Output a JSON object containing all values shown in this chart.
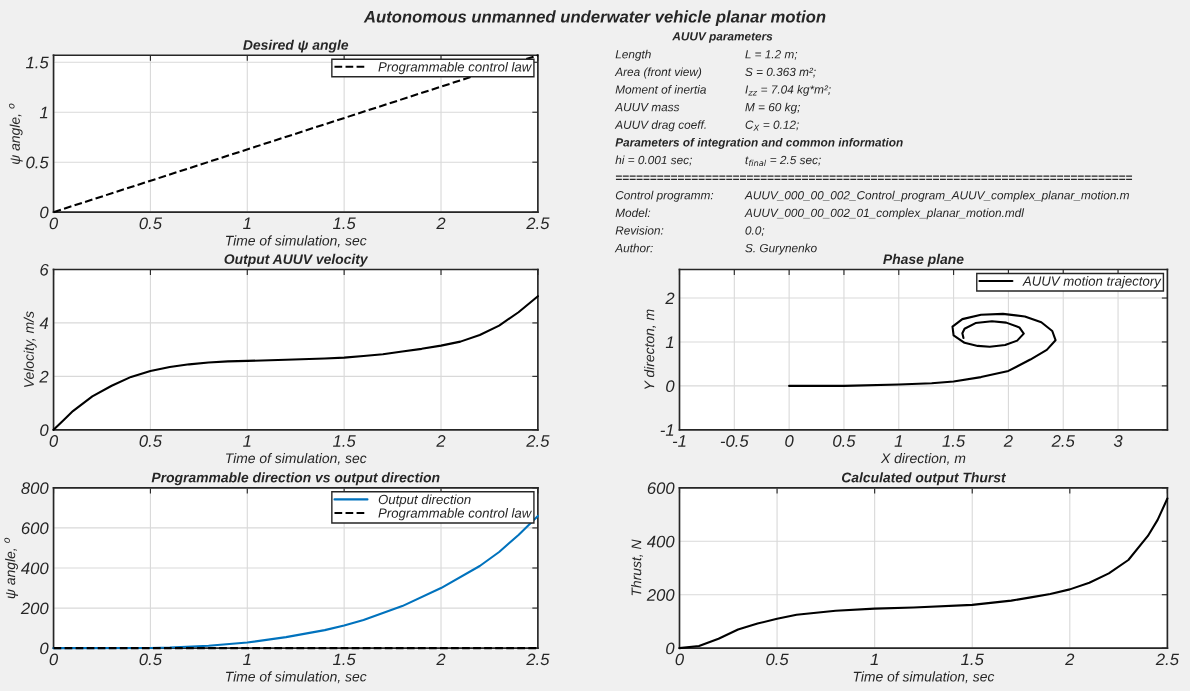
{
  "chart_data": [
    {
      "type": "line",
      "title": "Desired ψ angle",
      "xlabel": "Time of simulation, sec",
      "ylabel": "ψ angle, $^{o}$",
      "xlim": [
        0,
        2.5
      ],
      "ylim": [
        0,
        1.57
      ],
      "xticks": [
        0,
        0.5,
        1,
        1.5,
        2,
        2.5
      ],
      "yticks": [
        0,
        0.5,
        1,
        1.5
      ],
      "grid": true,
      "legend": "top right",
      "series": [
        {
          "name": "Programmable control law",
          "color": "#000000",
          "line_style": "dashed",
          "x": [
            0,
            2.5
          ],
          "values": [
            0,
            1.57
          ]
        }
      ]
    },
    {
      "type": "other",
      "title": "Autonomous unmanned underwater vehicle planar motion",
      "subtitle": "AUUV parameters",
      "annotations": [
        "Length\tL = 1.2 m;",
        "Area (front view)\tS = 0.363 m²;",
        "Moment of inertia\tI$_{zz}$ = 7.04 kg*m²;",
        "AUUV mass\tM = 60 kg;",
        "AUUV drag coeff.\tC$_{X}$ = 0.12;",
        "Parameters of integration and common information",
        "hi = 0.001 sec;\tt$_{final}$ = 2.5 sec;",
        "===========================================================================",
        "Control programm:\tAUUV_000_00_002_Control_program_AUUV_complex_planar_motion.m",
        "Model:\tAUUV_000_00_002_01_complex_planar_motion.mdl",
        "Revision:\t0.0;",
        "Author:\tS. Gurynenko"
      ]
    },
    {
      "type": "line",
      "title": "Output AUUV velocity",
      "xlabel": "Time of simulation, sec",
      "ylabel": "Velocity, m/s",
      "xlim": [
        0,
        2.5
      ],
      "ylim": [
        0,
        6
      ],
      "xticks": [
        0,
        0.5,
        1,
        1.5,
        2,
        2.5
      ],
      "yticks": [
        0,
        2,
        4,
        6
      ],
      "grid": true,
      "series": [
        {
          "color": "#000000",
          "line_style": "solid",
          "x": [
            0,
            0.05,
            0.1,
            0.2,
            0.3,
            0.4,
            0.5,
            0.6,
            0.7,
            0.8,
            0.9,
            1.0,
            1.2,
            1.4,
            1.5,
            1.6,
            1.7,
            1.8,
            1.9,
            2.0,
            2.1,
            2.2,
            2.3,
            2.4,
            2.5
          ],
          "values": [
            0,
            0.35,
            0.7,
            1.25,
            1.65,
            1.98,
            2.2,
            2.35,
            2.45,
            2.52,
            2.56,
            2.58,
            2.62,
            2.67,
            2.7,
            2.76,
            2.83,
            2.93,
            3.03,
            3.15,
            3.3,
            3.55,
            3.9,
            4.4,
            5.0
          ]
        }
      ]
    },
    {
      "type": "line",
      "title": "Phase plane",
      "xlabel": "X direction, m",
      "ylabel": "Y directon, m",
      "xlim": [
        -1,
        3.45
      ],
      "ylim": [
        -1,
        2.65
      ],
      "xticks": [
        -1,
        -0.5,
        0,
        0.5,
        1,
        1.5,
        2,
        2.5,
        3
      ],
      "yticks": [
        -1,
        0,
        1,
        2
      ],
      "grid": true,
      "legend": "top right",
      "series": [
        {
          "name": "AUUV motion trajectory",
          "color": "#000000",
          "line_style": "solid",
          "x": [
            0,
            0.5,
            1.0,
            1.3,
            1.5,
            1.75,
            2.0,
            2.2,
            2.35,
            2.43,
            2.4,
            2.3,
            2.15,
            1.95,
            1.75,
            1.58,
            1.49,
            1.5,
            1.6,
            1.72,
            1.83,
            1.97,
            2.08,
            2.14,
            2.1,
            1.98,
            1.85,
            1.7,
            1.6,
            1.58,
            1.59
          ],
          "values": [
            0,
            0,
            0.03,
            0.06,
            0.1,
            0.2,
            0.34,
            0.6,
            0.82,
            1.04,
            1.25,
            1.45,
            1.58,
            1.64,
            1.62,
            1.52,
            1.35,
            1.15,
            0.98,
            0.91,
            0.89,
            0.93,
            1.03,
            1.19,
            1.33,
            1.44,
            1.47,
            1.43,
            1.3,
            1.2,
            1.09
          ]
        }
      ]
    },
    {
      "type": "line",
      "title": "Programmable direction vs output direction",
      "xlabel": "Time of simulation, sec",
      "ylabel": "ψ angle, $^{o}$",
      "xlim": [
        0,
        2.5
      ],
      "ylim": [
        0,
        800
      ],
      "xticks": [
        0,
        0.5,
        1,
        1.5,
        2,
        2.5
      ],
      "yticks": [
        0,
        200,
        400,
        600,
        800
      ],
      "grid": true,
      "legend": "top right",
      "series": [
        {
          "name": "Output direction",
          "color": "#0072bd",
          "line_style": "solid",
          "x": [
            0,
            0.5,
            0.6,
            0.8,
            1.0,
            1.2,
            1.4,
            1.5,
            1.6,
            1.8,
            2.0,
            2.2,
            2.3,
            2.4,
            2.5
          ],
          "values": [
            0,
            1,
            3,
            12,
            28,
            55,
            90,
            113,
            140,
            210,
            300,
            410,
            480,
            565,
            660
          ]
        },
        {
          "name": "Programmable control law",
          "color": "#000000",
          "line_style": "dashed",
          "x": [
            0,
            2.5
          ],
          "values": [
            0,
            0
          ]
        }
      ]
    },
    {
      "type": "line",
      "title": "Calculated output Thurst",
      "xlabel": "Time of simulation, sec",
      "ylabel": "Thrust, N",
      "xlim": [
        0,
        2.5
      ],
      "ylim": [
        0,
        600
      ],
      "xticks": [
        0,
        0.5,
        1,
        1.5,
        2,
        2.5
      ],
      "yticks": [
        0,
        200,
        400,
        600
      ],
      "grid": true,
      "series": [
        {
          "color": "#000000",
          "line_style": "solid",
          "x": [
            0,
            0.1,
            0.2,
            0.3,
            0.4,
            0.5,
            0.6,
            0.8,
            1.0,
            1.2,
            1.5,
            1.7,
            1.8,
            1.9,
            2.0,
            2.1,
            2.2,
            2.3,
            2.4,
            2.45,
            2.5
          ],
          "values": [
            0,
            8,
            35,
            70,
            92,
            110,
            125,
            140,
            148,
            152,
            162,
            178,
            190,
            203,
            220,
            245,
            280,
            330,
            420,
            480,
            560
          ]
        }
      ]
    }
  ]
}
